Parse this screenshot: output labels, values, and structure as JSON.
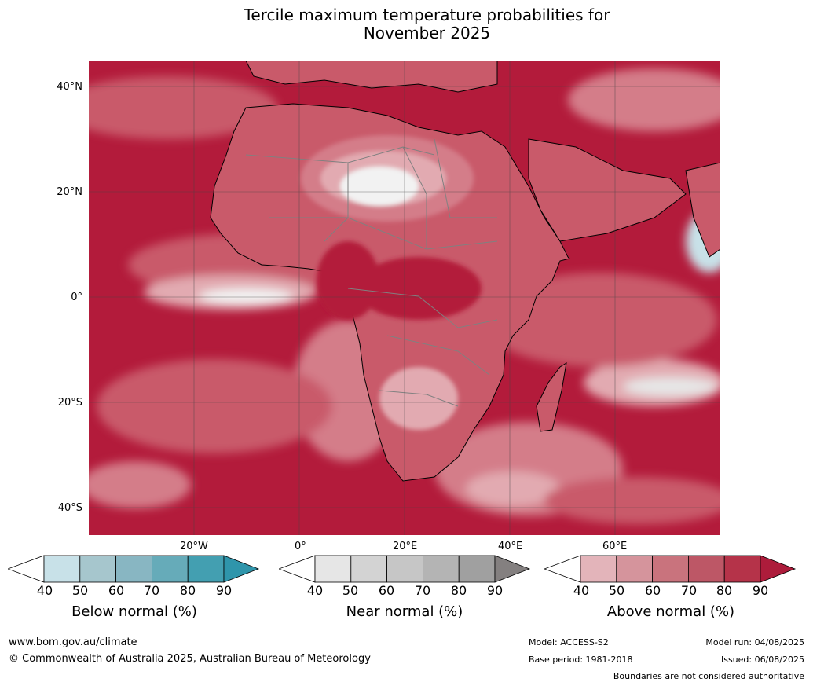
{
  "title": {
    "line1": "Tercile maximum temperature probabilities for",
    "line2": "November 2025"
  },
  "map": {
    "region": "Africa",
    "latitude_labels": [
      "40°N",
      "20°N",
      "0°",
      "20°S",
      "40°S"
    ],
    "longitude_labels": [
      "20°W",
      "0°",
      "20°E",
      "40°E",
      "60°E"
    ],
    "colors": {
      "ocean_high": "#b31b3b",
      "above_80": "#c0364f",
      "above_70": "#c95a6a",
      "above_60": "#d47d89",
      "above_50": "#e2aab1",
      "near_normal": "#e6e6e6",
      "coast": "#000000",
      "borders": "#808080"
    }
  },
  "legends": [
    {
      "name": "below",
      "label": "Below normal (%)",
      "ticks": [
        "40",
        "50",
        "60",
        "70",
        "80",
        "90"
      ],
      "colors": [
        "#ffffff",
        "#c8e1e8",
        "#a6c6cd",
        "#88b6c2",
        "#66abb9",
        "#439fb1",
        "#2f95ab"
      ]
    },
    {
      "name": "near",
      "label": "Near normal (%)",
      "ticks": [
        "40",
        "50",
        "60",
        "70",
        "80",
        "90"
      ],
      "colors": [
        "#ffffff",
        "#e6e6e6",
        "#d3d3d3",
        "#c6c6c6",
        "#b4b4b4",
        "#a0a0a0",
        "#848080"
      ]
    },
    {
      "name": "above",
      "label": "Above normal (%)",
      "ticks": [
        "40",
        "50",
        "60",
        "70",
        "80",
        "90"
      ],
      "colors": [
        "#ffffff",
        "#e3b4ba",
        "#d5949c",
        "#c9737d",
        "#bd5766",
        "#b53349",
        "#ad1c3b"
      ]
    }
  ],
  "footer": {
    "website": "www.bom.gov.au/climate",
    "copyright": "© Commonwealth of Australia 2025, Australian Bureau of Meteorology",
    "model": "Model: ACCESS-S2",
    "base_period": "Base period: 1981-2018",
    "model_run": "Model run: 04/08/2025",
    "issued": "Issued: 06/08/2025",
    "disclaimer": "Boundaries are not considered authoritative"
  }
}
